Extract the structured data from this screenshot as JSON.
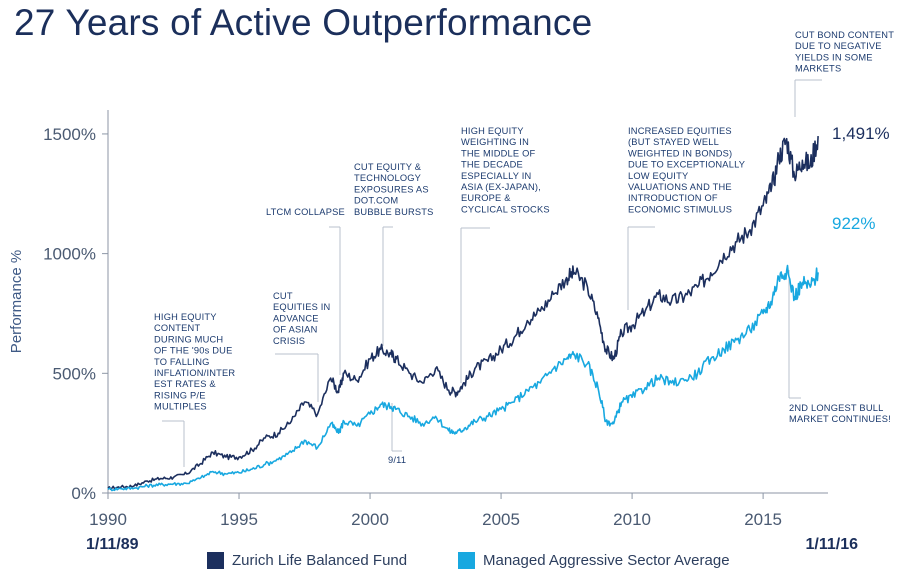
{
  "title": "27 Years of Active Outperformance",
  "chart_data": {
    "type": "line",
    "ylabel": "Performance %",
    "xlim": [
      1990,
      2017.4
    ],
    "ylim": [
      0,
      1600
    ],
    "x_ticks": [
      "1990",
      "1995",
      "2000",
      "2005",
      "2010",
      "2015"
    ],
    "y_ticks": [
      "0%",
      "500%",
      "1000%",
      "1500%"
    ],
    "start_date": "1/11/89",
    "end_date": "1/11/16",
    "series": [
      {
        "name": "Zurich Life Balanced Fund",
        "color": "#1c2f5e",
        "end_label": "1,491%",
        "x": [
          1990,
          1990.5,
          1991,
          1991.5,
          1992,
          1992.5,
          1993,
          1993.5,
          1994,
          1994.5,
          1995,
          1995.5,
          1996,
          1996.5,
          1997,
          1997.5,
          1998,
          1998.5,
          1998.8,
          1999,
          1999.5,
          2000,
          2000.4,
          2000.8,
          2001,
          2001.5,
          2002,
          2002.5,
          2003,
          2003.3,
          2003.6,
          2004,
          2004.5,
          2005,
          2005.5,
          2006,
          2006.5,
          2007,
          2007.5,
          2007.8,
          2008.3,
          2008.7,
          2009.0,
          2009.3,
          2009.6,
          2010,
          2010.5,
          2011,
          2011.5,
          2012,
          2012.5,
          2013,
          2013.5,
          2014,
          2014.5,
          2015,
          2015.3,
          2015.6,
          2015.9,
          2016.2,
          2016.5,
          2016.8,
          2017.1
        ],
        "y": [
          20,
          25,
          30,
          50,
          60,
          65,
          80,
          120,
          170,
          150,
          150,
          180,
          230,
          250,
          300,
          380,
          330,
          480,
          420,
          500,
          470,
          560,
          600,
          580,
          560,
          500,
          460,
          520,
          430,
          420,
          460,
          520,
          550,
          600,
          650,
          720,
          760,
          830,
          900,
          920,
          860,
          730,
          600,
          560,
          670,
          700,
          760,
          830,
          800,
          820,
          860,
          920,
          1000,
          1050,
          1100,
          1200,
          1260,
          1400,
          1480,
          1320,
          1390,
          1370,
          1491
        ]
      },
      {
        "name": "Managed Aggressive Sector Average",
        "color": "#18a8e0",
        "end_label": "922%",
        "x": [
          1990,
          1990.5,
          1991,
          1991.5,
          1992,
          1992.5,
          1993,
          1993.5,
          1994,
          1994.5,
          1995,
          1995.5,
          1996,
          1996.5,
          1997,
          1997.5,
          1998,
          1998.5,
          1998.8,
          1999,
          1999.5,
          2000,
          2000.4,
          2000.8,
          2001,
          2001.5,
          2002,
          2002.5,
          2003,
          2003.3,
          2003.6,
          2004,
          2004.5,
          2005,
          2005.5,
          2006,
          2006.5,
          2007,
          2007.5,
          2007.8,
          2008.3,
          2008.7,
          2009.0,
          2009.3,
          2009.6,
          2010,
          2010.5,
          2011,
          2011.5,
          2012,
          2012.5,
          2013,
          2013.5,
          2014,
          2014.5,
          2015,
          2015.3,
          2015.6,
          2015.9,
          2016.2,
          2016.5,
          2016.8,
          2017.1
        ],
        "y": [
          15,
          18,
          20,
          30,
          35,
          38,
          40,
          60,
          90,
          80,
          85,
          100,
          120,
          140,
          170,
          220,
          190,
          290,
          250,
          300,
          280,
          330,
          370,
          360,
          350,
          320,
          290,
          320,
          260,
          250,
          270,
          300,
          320,
          350,
          380,
          430,
          460,
          520,
          560,
          580,
          540,
          440,
          300,
          290,
          380,
          400,
          440,
          480,
          460,
          470,
          500,
          560,
          600,
          640,
          680,
          750,
          800,
          900,
          930,
          820,
          880,
          860,
          922
        ]
      }
    ],
    "annotations": [
      {
        "x": 1993.0,
        "lines": [
          "HIGH EQUITY",
          "CONTENT",
          "DURING MUCH",
          "OF THE '90s DUE",
          "TO FALLING",
          "INFLATION/INTER",
          "EST RATES &",
          "RISING P/E",
          "MULTIPLES"
        ]
      },
      {
        "x": 1997.8,
        "lines": [
          "CUT",
          "EQUITIES IN",
          "ADVANCE",
          "OF ASIAN",
          "CRISIS"
        ]
      },
      {
        "x": 1998.8,
        "lines": [
          "LTCM COLLAPSE"
        ]
      },
      {
        "x": 2000.2,
        "lines": [
          "CUT EQUITY &",
          "TECHNOLOGY",
          "EXPOSURES AS",
          "DOT.COM",
          "BUBBLE BURSTS"
        ]
      },
      {
        "x": 2001.7,
        "lines": [
          "9/11"
        ]
      },
      {
        "x": 2003.3,
        "lines": [
          "HIGH EQUITY",
          "WEIGHTING IN",
          "THE MIDDLE OF",
          "THE DECADE",
          "ESPECIALLY IN",
          "ASIA (EX-JAPAN),",
          "EUROPE &",
          "CYCLICAL STOCKS"
        ]
      },
      {
        "x": 2009.3,
        "lines": [
          "INCREASED EQUITIES",
          "(BUT STAYED WELL",
          "WEIGHTED IN BONDS)",
          "DUE TO EXCEPTIONALLY",
          "LOW EQUITY",
          "VALUATIONS AND THE",
          "INTRODUCTION OF",
          "ECONOMIC STIMULUS"
        ]
      },
      {
        "x": 2015.6,
        "lines": [
          "CUT BOND CONTENT",
          "DUE TO NEGATIVE",
          "YIELDS IN SOME",
          "MARKETS"
        ]
      },
      {
        "x": 2015.9,
        "lines": [
          "2ND LONGEST BULL",
          "MARKET CONTINUES!"
        ]
      }
    ]
  },
  "legend": {
    "items": [
      {
        "label": "Zurich Life Balanced Fund",
        "color": "#1c2f5e"
      },
      {
        "label": "Managed Aggressive Sector Average",
        "color": "#18a8e0"
      }
    ]
  }
}
